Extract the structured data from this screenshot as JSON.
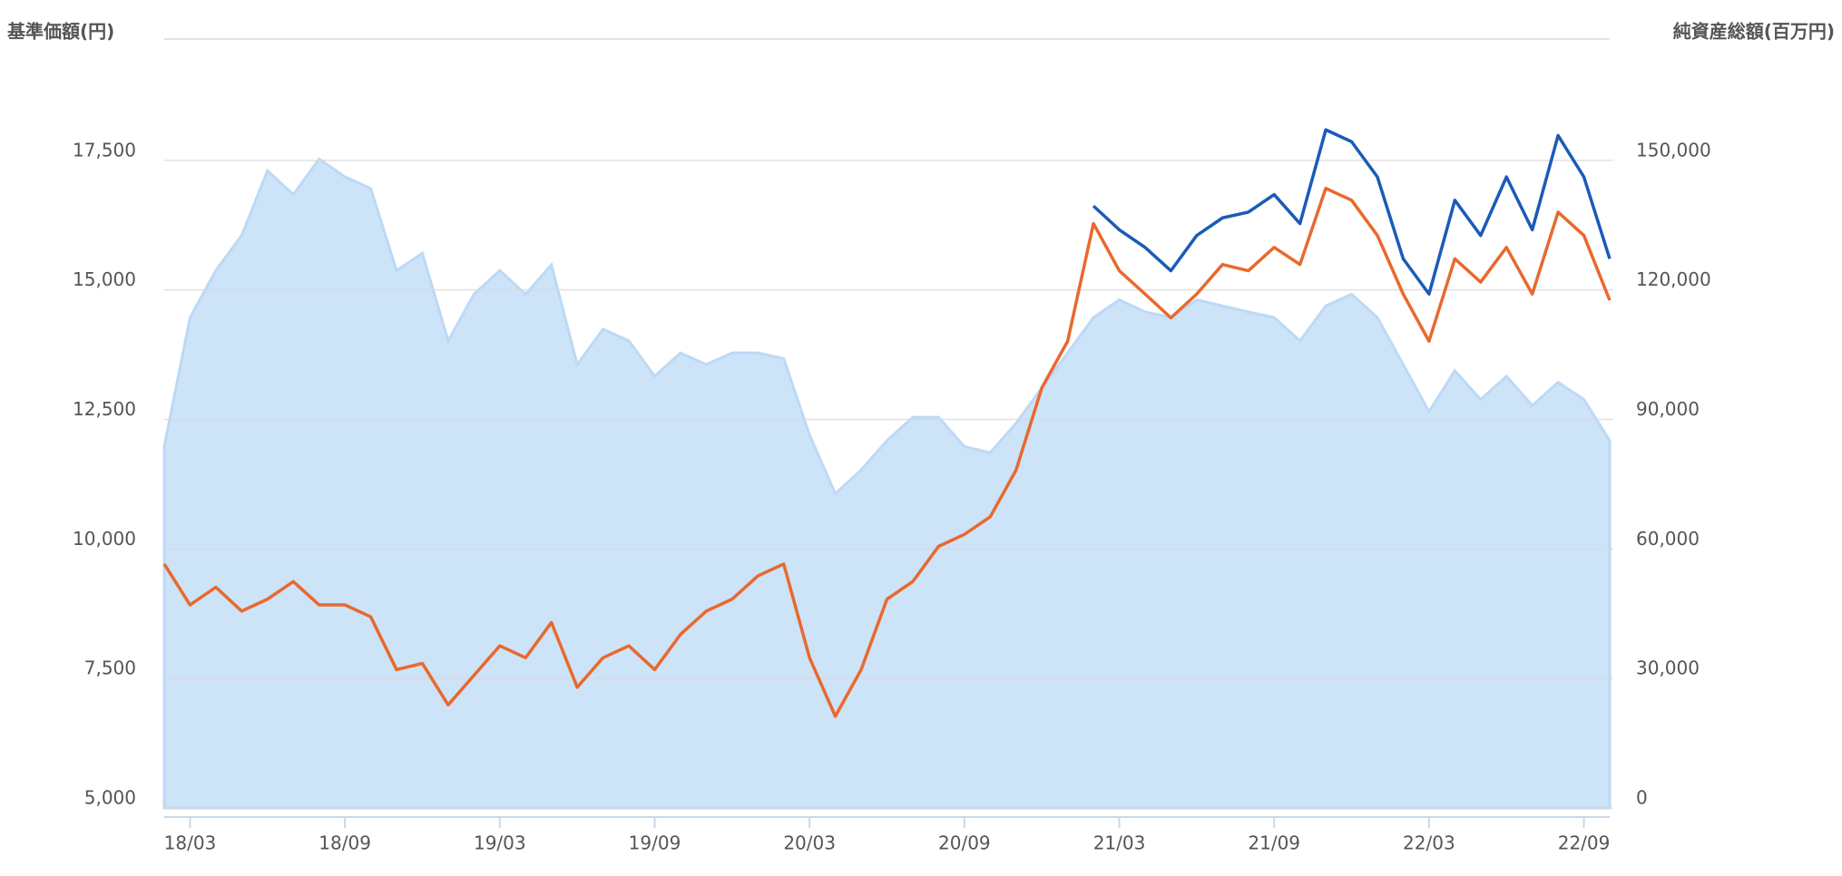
{
  "chart_data": {
    "type": "line",
    "y_label": "基準価額(円)",
    "y2_label": "純資産総額(百万円)",
    "x": [
      "18/02",
      "18/03",
      "18/04",
      "18/05",
      "18/06",
      "18/07",
      "18/08",
      "18/09",
      "18/10",
      "18/11",
      "18/12",
      "19/01",
      "19/02",
      "19/03",
      "19/04",
      "19/05",
      "19/06",
      "19/07",
      "19/08",
      "19/09",
      "19/10",
      "19/11",
      "19/12",
      "20/01",
      "20/02",
      "20/03",
      "20/04",
      "20/05",
      "20/06",
      "20/07",
      "20/08",
      "20/09",
      "20/10",
      "20/11",
      "20/12",
      "21/01",
      "21/02",
      "21/03",
      "21/04",
      "21/05",
      "21/06",
      "21/07",
      "21/08",
      "21/09",
      "21/10",
      "21/11",
      "21/12",
      "22/01",
      "22/02",
      "22/03",
      "22/04",
      "22/05",
      "22/06",
      "22/07",
      "22/08",
      "22/09",
      "22/10"
    ],
    "xlim": [
      "18/02",
      "22/10"
    ],
    "xticks": [
      "18/03",
      "18/09",
      "19/03",
      "19/09",
      "20/03",
      "20/09",
      "21/03",
      "21/09",
      "22/03",
      "22/09"
    ],
    "ylim": [
      5000,
      20000
    ],
    "yticks": [
      {
        "value": 5000,
        "label": "5,000"
      },
      {
        "value": 7500,
        "label": "7,500"
      },
      {
        "value": 10000,
        "label": "10,000"
      },
      {
        "value": 12500,
        "label": "12,500"
      },
      {
        "value": 15000,
        "label": "15,000"
      },
      {
        "value": 17500,
        "label": "17,500"
      }
    ],
    "y2lim": [
      0,
      180000
    ],
    "y2ticks": [
      0,
      {
        "value": 30000,
        "label": "30,000"
      },
      {
        "value": 60000,
        "label": "60,000"
      },
      {
        "value": 90000,
        "label": "90,000"
      },
      {
        "value": 120000,
        "label": "120,000"
      },
      {
        "value": 150000,
        "label": "150,000"
      }
    ],
    "grid": true,
    "series": [
      {
        "kind": "area",
        "axis": "y2",
        "color": "#bcd9f6",
        "values": [
          83700,
          113600,
          124500,
          132600,
          147600,
          142100,
          150300,
          146200,
          143500,
          124500,
          128500,
          108200,
          119000,
          124500,
          119000,
          125800,
          102700,
          110900,
          108200,
          100000,
          105400,
          102700,
          105400,
          105400,
          104100,
          86400,
          72800,
          78300,
          85100,
          90500,
          90500,
          83700,
          82300,
          89100,
          97300,
          105400,
          113600,
          117700,
          114900,
          113600,
          117700,
          116300,
          114900,
          113600,
          108200,
          116300,
          119000,
          113600,
          102700,
          91800,
          101300,
          94600,
          100000,
          93200,
          98600,
          94600,
          85100
        ]
      },
      {
        "kind": "line",
        "color": "#e8692e",
        "values": [
          9710,
          8920,
          9260,
          8800,
          9030,
          9370,
          8920,
          8920,
          8690,
          7670,
          7790,
          6990,
          7560,
          8130,
          7900,
          8580,
          7330,
          7900,
          8130,
          7670,
          8350,
          8800,
          9030,
          9480,
          9710,
          7900,
          6770,
          7670,
          9030,
          9370,
          10050,
          10280,
          10620,
          11520,
          13110,
          14010,
          16280,
          15370,
          14920,
          14460,
          14920,
          15490,
          15370,
          15820,
          15490,
          16960,
          16730,
          16050,
          14920,
          14010,
          15600,
          15150,
          15820,
          14920,
          16500,
          16050,
          14800
        ]
      },
      {
        "kind": "line",
        "color": "#1a5bb8",
        "values": [
          null,
          null,
          null,
          null,
          null,
          null,
          null,
          null,
          null,
          null,
          null,
          null,
          null,
          null,
          null,
          null,
          null,
          null,
          null,
          null,
          null,
          null,
          null,
          null,
          null,
          null,
          null,
          null,
          null,
          null,
          null,
          null,
          null,
          null,
          null,
          null,
          16620,
          16160,
          15820,
          15370,
          16050,
          16390,
          16500,
          16840,
          16280,
          18090,
          17860,
          17180,
          15600,
          14920,
          16730,
          16050,
          17180,
          16160,
          17980,
          17180,
          15600
        ]
      }
    ]
  }
}
